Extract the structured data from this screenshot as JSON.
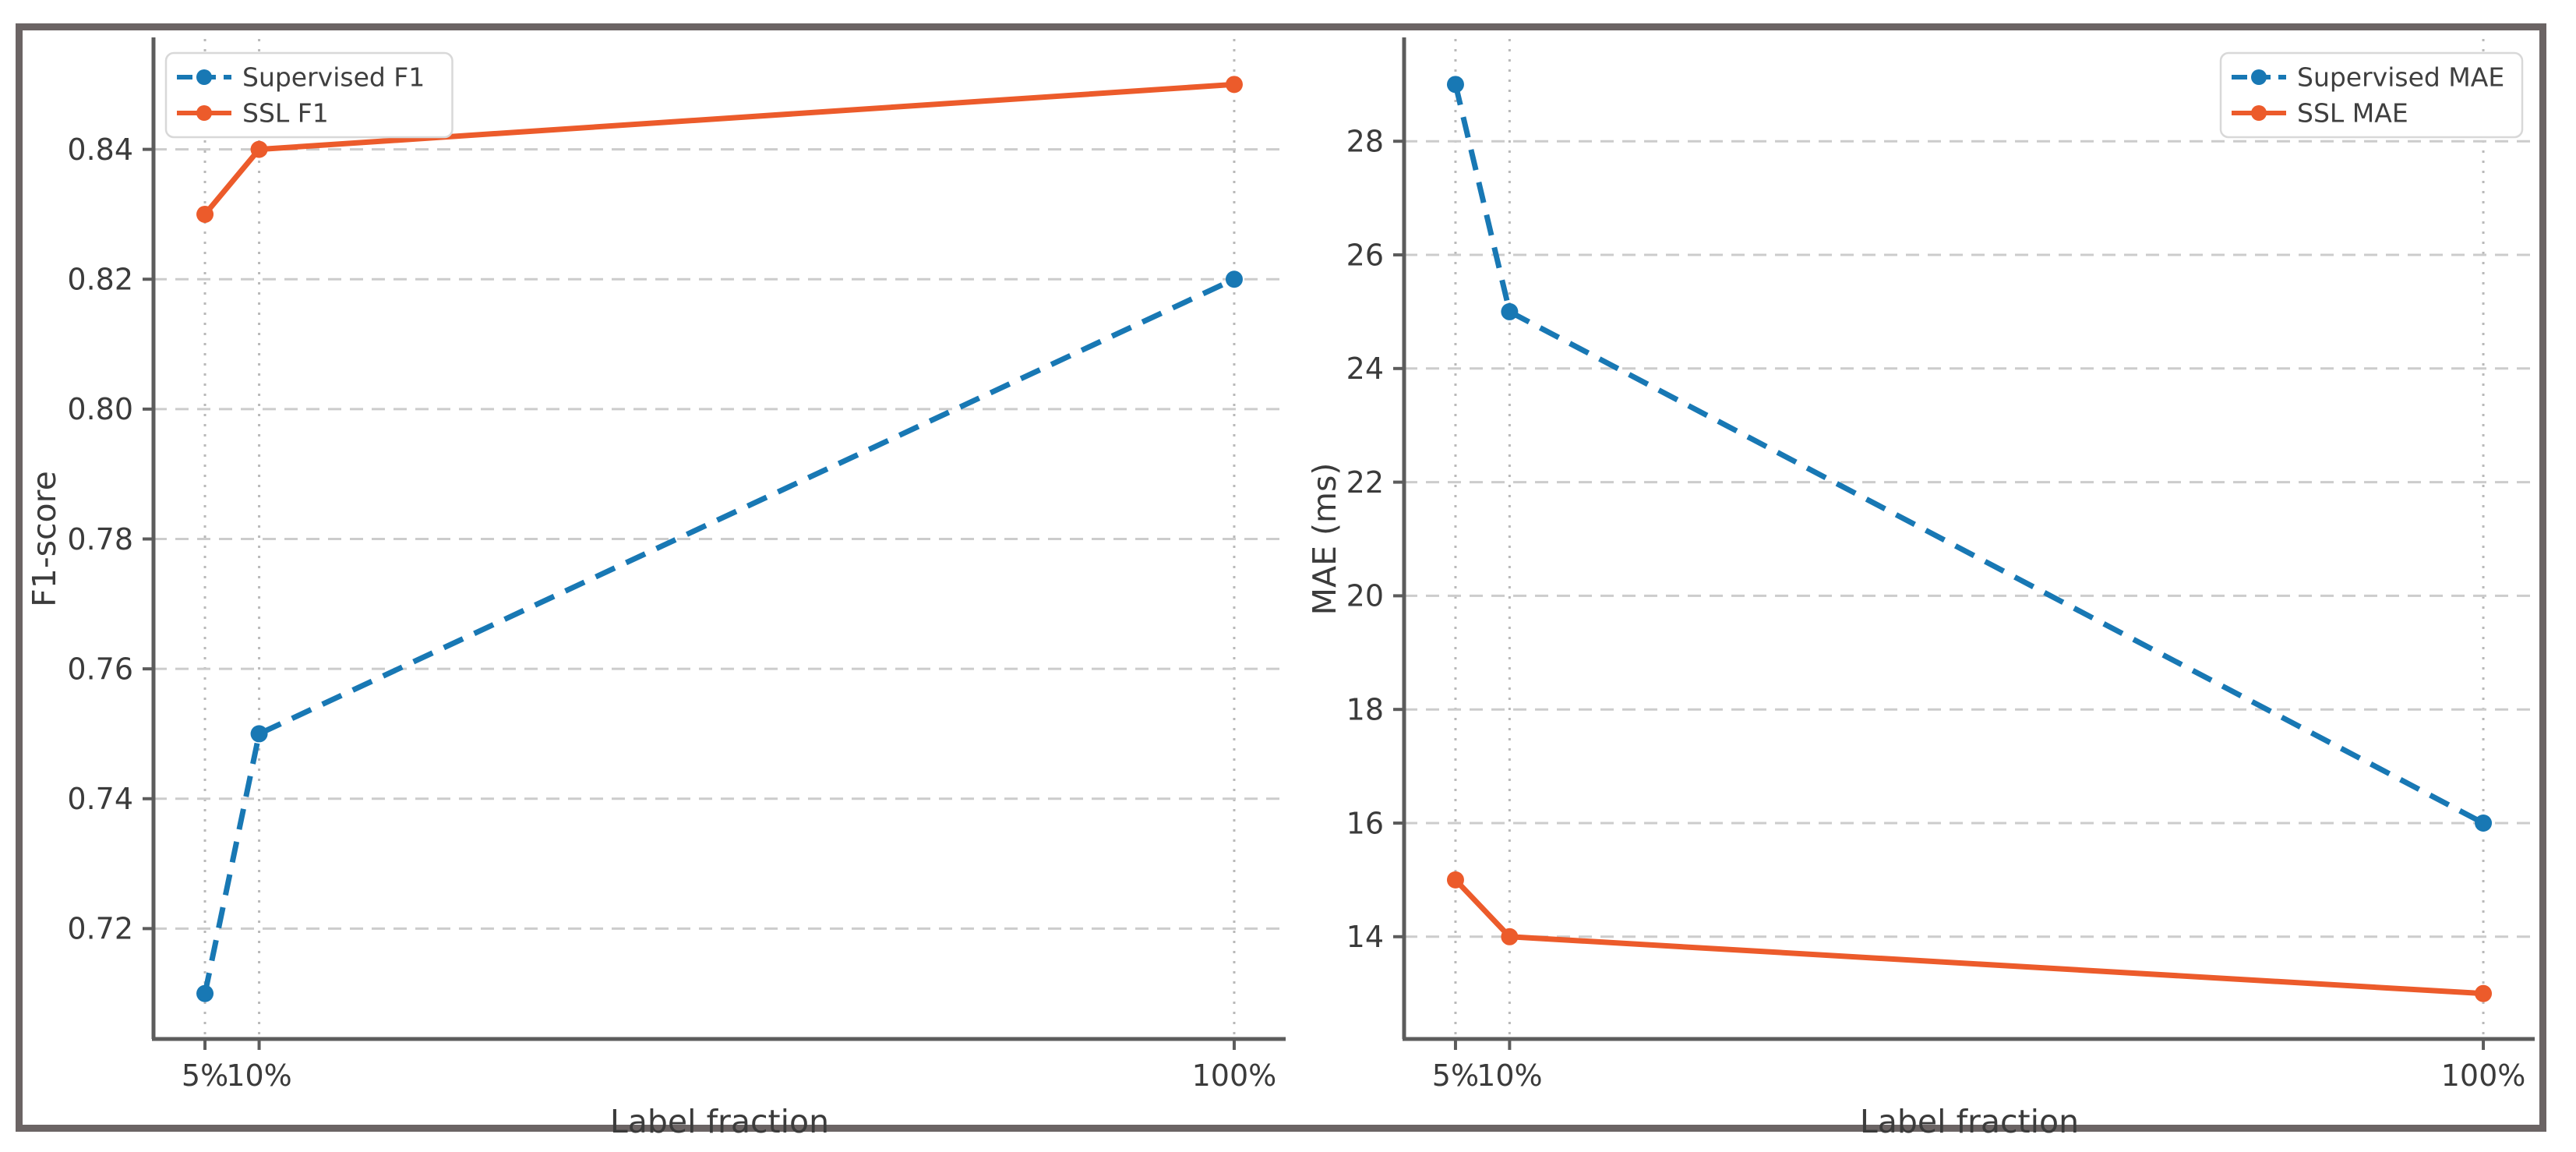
{
  "figure": {
    "background": "#ffffff",
    "border_color": "#6b6464",
    "colors": {
      "supervised": "#1878b4",
      "ssl": "#ec5b2b"
    },
    "style": {
      "hgrid_color": "#cccccc",
      "vgrid_color": "#b9b9b9",
      "spine_color": "#5c5c5c",
      "tick_text_color": "#3b3b3b",
      "legend_border_color": "#d8d8d8"
    }
  },
  "chart_data": [
    {
      "type": "line",
      "title": "",
      "xlabel": "Label fraction",
      "ylabel": "F1-score",
      "x": [
        5,
        10,
        100
      ],
      "xticklabels": [
        "5%",
        "10%",
        "100%"
      ],
      "xlim": [
        0.25,
        104.75
      ],
      "ylim": [
        0.703,
        0.857
      ],
      "yticks": [
        0.72,
        0.74,
        0.76,
        0.78,
        0.8,
        0.82,
        0.84
      ],
      "yticklabels": [
        "0.72",
        "0.74",
        "0.76",
        "0.78",
        "0.80",
        "0.82",
        "0.84"
      ],
      "grid": true,
      "legend_position": "upper-left",
      "series": [
        {
          "name": "Supervised F1",
          "values": [
            0.71,
            0.75,
            0.82
          ],
          "color_key": "supervised",
          "line_style": "dashed",
          "marker": "circle"
        },
        {
          "name": "SSL F1",
          "values": [
            0.83,
            0.84,
            0.85
          ],
          "color_key": "ssl",
          "line_style": "solid",
          "marker": "circle"
        }
      ]
    },
    {
      "type": "line",
      "title": "",
      "xlabel": "Label fraction",
      "ylabel": "MAE (ms)",
      "x": [
        5,
        10,
        100
      ],
      "xticklabels": [
        "5%",
        "10%",
        "100%"
      ],
      "xlim": [
        0.25,
        104.75
      ],
      "ylim": [
        12.2,
        29.8
      ],
      "yticks": [
        14,
        16,
        18,
        20,
        22,
        24,
        26,
        28
      ],
      "yticklabels": [
        "14",
        "16",
        "18",
        "20",
        "22",
        "24",
        "26",
        "28"
      ],
      "grid": true,
      "legend_position": "upper-right",
      "series": [
        {
          "name": "Supervised MAE",
          "values": [
            29,
            25,
            16
          ],
          "color_key": "supervised",
          "line_style": "dashed",
          "marker": "circle"
        },
        {
          "name": "SSL MAE",
          "values": [
            15,
            14,
            13
          ],
          "color_key": "ssl",
          "line_style": "solid",
          "marker": "circle"
        }
      ]
    }
  ]
}
